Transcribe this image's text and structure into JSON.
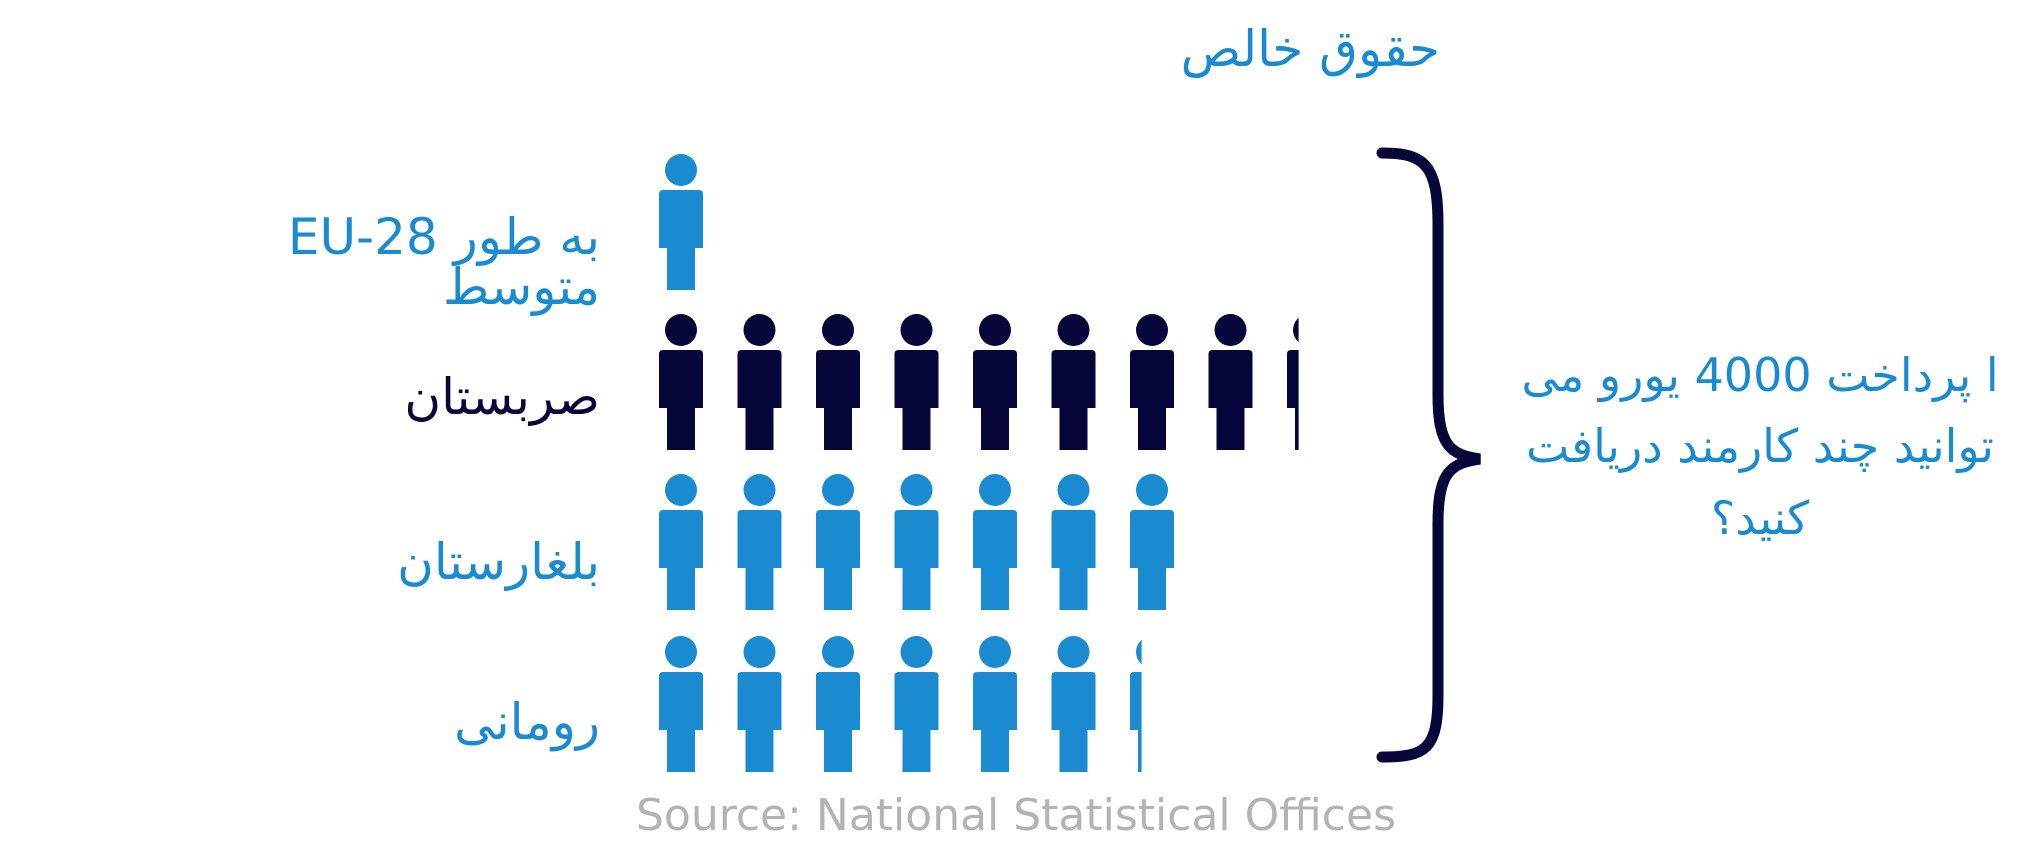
{
  "colors": {
    "light": "#1a8bd0",
    "dark": "#06063b",
    "source": "#b3b3b3"
  },
  "title": "حقوق خالص",
  "question": [
    "ا پرداخت 4000 یورو می",
    "توانید چند کارمند دریافت",
    "کنید؟"
  ],
  "source": "Source: National Statistical Offices",
  "chart_data": {
    "type": "pictogram",
    "title": "حقوق خالص",
    "icon": "person-icon",
    "categories": [
      "EU-28 به طور متوسط",
      "صربستان",
      "بلغارستان",
      "رومانی"
    ],
    "values": [
      1,
      8.3,
      7,
      6.3
    ],
    "colors": [
      "#1a8bd0",
      "#06063b",
      "#1a8bd0",
      "#1a8bd0"
    ]
  }
}
